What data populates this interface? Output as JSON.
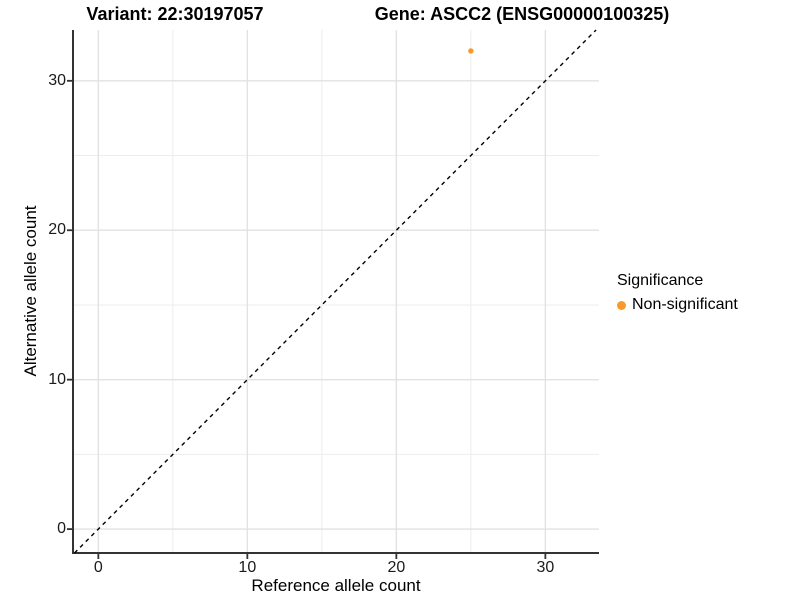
{
  "titles": {
    "variant": "Variant: 22:30197057",
    "gene": "Gene: ASCC2 (ENSG00000100325)"
  },
  "colors": {
    "point_orange": "#F8992C",
    "gridline_major": "#E2E2E2",
    "gridline_minor": "#EDEDED",
    "axis_line": "#333333",
    "identity_line": "#000000"
  },
  "chart_data": {
    "type": "scatter",
    "titles": [
      "Variant: 22:30197057",
      "Gene: ASCC2 (ENSG00000100325)"
    ],
    "xlabel": "Reference allele count",
    "ylabel": "Alternative allele count",
    "xlim": [
      -1.7,
      33.6
    ],
    "ylim": [
      -1.6,
      33.4
    ],
    "x_ticks": [
      0,
      10,
      20,
      30
    ],
    "y_ticks": [
      0,
      10,
      20,
      30
    ],
    "x_minor_ticks": [
      5,
      15,
      25
    ],
    "y_minor_ticks": [
      5,
      15,
      25
    ],
    "grid": true,
    "identity_line": {
      "slope": 1,
      "intercept": 0,
      "style": "dashed",
      "color": "#000000"
    },
    "legend": {
      "title": "Significance",
      "position": "right",
      "entries": [
        {
          "label": "Non-significant",
          "color": "#F8992C"
        }
      ]
    },
    "series": [
      {
        "name": "Non-significant",
        "color": "#F8992C",
        "points": [
          {
            "x": 25,
            "y": 32
          }
        ]
      }
    ]
  }
}
